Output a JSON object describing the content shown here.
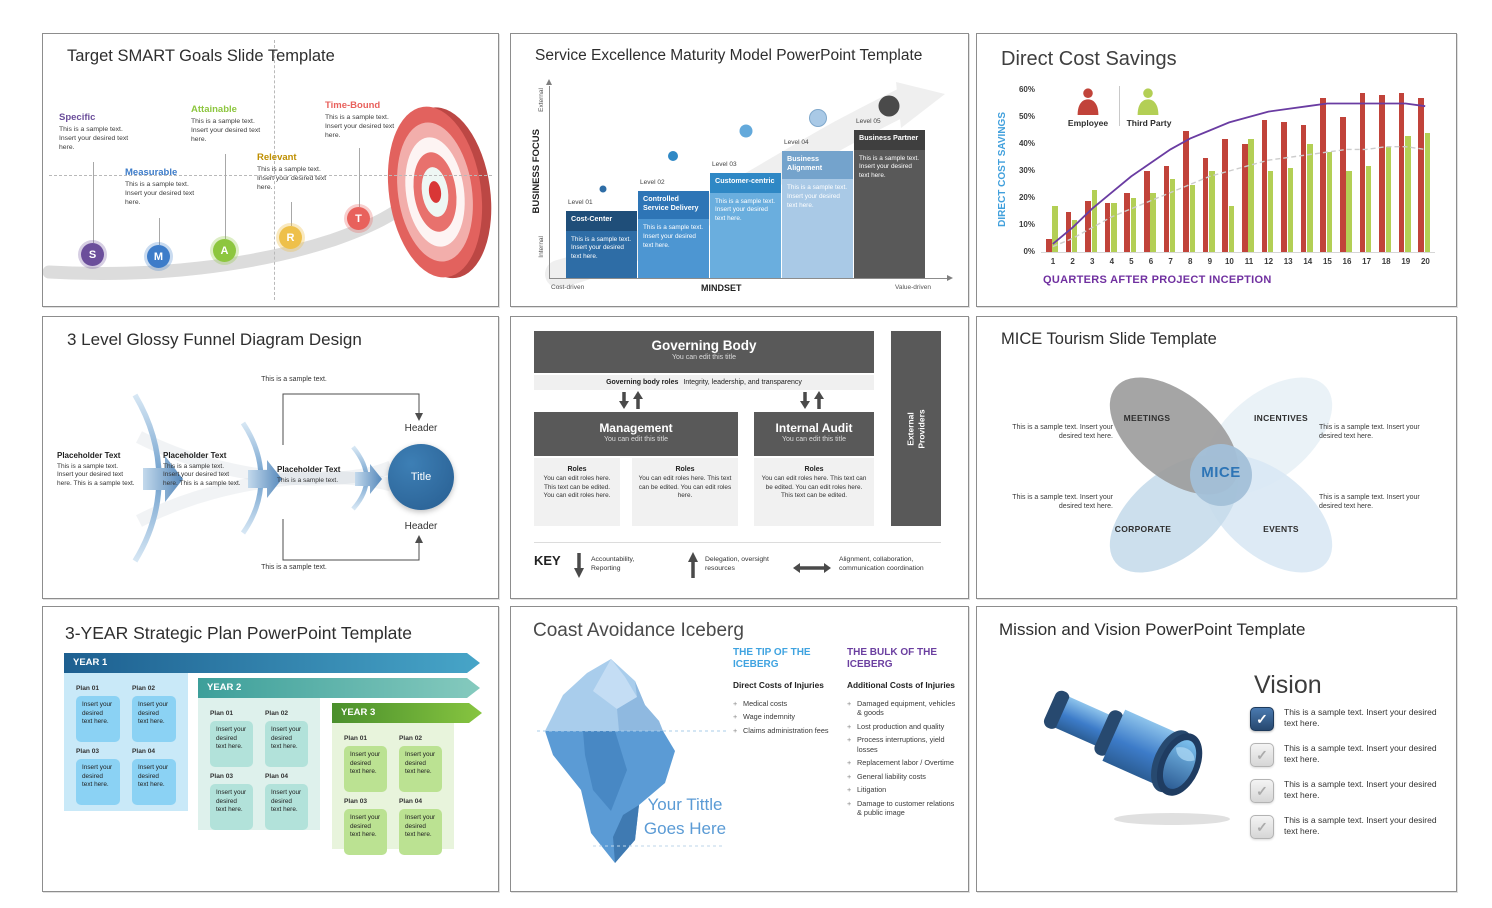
{
  "common": {
    "sample_short": "This is a sample text.",
    "sample_insert": "This is a sample text. Insert your desired text here.",
    "sample_insert_long": "This is a sample text. Insert your desired text here. This is a sample text.",
    "box_insert": "Insert your desired text here."
  },
  "smart": {
    "title": "Target SMART Goals Slide Template",
    "items": [
      {
        "letter": "S",
        "label": "Specific",
        "color": "#6b4e9b"
      },
      {
        "letter": "M",
        "label": "Measurable",
        "color": "#3d7cc9"
      },
      {
        "letter": "A",
        "label": "Attainable",
        "color": "#8dc63f"
      },
      {
        "letter": "R",
        "label": "Relevant",
        "color": "#bf8f00",
        "circle_color": "#eec04a"
      },
      {
        "letter": "T",
        "label": "Time-Bound",
        "color": "#e8615c"
      }
    ]
  },
  "maturity": {
    "title": "Service Excellence Maturity Model PowerPoint Template",
    "y_axis": {
      "label": "BUSINESS FOCUS",
      "top": "External",
      "bottom": "Internal"
    },
    "x_axis": {
      "label": "MINDSET",
      "left": "Cost-driven",
      "right": "Value-driven"
    },
    "levels": [
      {
        "level": "Level 01",
        "name": "Cost-Center",
        "header_color": "#1f4e79",
        "body_color": "#2e6da6"
      },
      {
        "level": "Level 02",
        "name": "Controlled Service Delivery",
        "header_color": "#2e75b6",
        "body_color": "#4d96d2"
      },
      {
        "level": "Level 03",
        "name": "Customer-centric",
        "header_color": "#2f88c5",
        "body_color": "#6aaede"
      },
      {
        "level": "Level 04",
        "name": "Business Alignment",
        "header_color": "#74a3cc",
        "body_color": "#a9c9e6"
      },
      {
        "level": "Level 05",
        "name": "Business Partner",
        "header_color": "#3f3f3f",
        "body_color": "#595959"
      }
    ]
  },
  "chart_data": {
    "type": "bar",
    "title": "Direct Cost Savings",
    "xlabel": "QUARTERS AFTER PROJECT INCEPTION",
    "ylabel": "DIRECT COST SAVINGS",
    "x": [
      1,
      2,
      3,
      4,
      5,
      6,
      7,
      8,
      9,
      10,
      11,
      12,
      13,
      14,
      15,
      16,
      17,
      18,
      19,
      20
    ],
    "ylim": [
      0,
      60
    ],
    "yticks": [
      0,
      10,
      20,
      30,
      40,
      50,
      60
    ],
    "ytick_format": "percent",
    "grid": false,
    "legend_position": "top-left-inside",
    "series": [
      {
        "name": "Employee",
        "color": "#c1433a",
        "values": [
          5,
          15,
          19,
          18,
          22,
          30,
          32,
          45,
          35,
          42,
          40,
          49,
          48,
          47,
          57,
          50,
          59,
          58,
          59,
          57
        ]
      },
      {
        "name": "Third Party",
        "color": "#b3cf55",
        "values": [
          17,
          12,
          23,
          18,
          20,
          22,
          27,
          25,
          30,
          17,
          42,
          30,
          31,
          40,
          37,
          30,
          32,
          39,
          43,
          44
        ]
      }
    ],
    "trend_lines": [
      {
        "name": "Employee trend",
        "color": "#6a3ca2",
        "style": "solid",
        "values": [
          3,
          9,
          16,
          22,
          28,
          33,
          38,
          42,
          45,
          48,
          50,
          52,
          53,
          54,
          55,
          55,
          55,
          55,
          55,
          54
        ]
      },
      {
        "name": "Third Party trend",
        "color": "#cccccc",
        "style": "dashed",
        "values": [
          2,
          5,
          9,
          13,
          16,
          19,
          22,
          25,
          28,
          30,
          32,
          34,
          35,
          36,
          37,
          38,
          38,
          39,
          39,
          38
        ]
      }
    ]
  },
  "funnel": {
    "title": "3 Level Glossy Funnel Diagram Design",
    "stage_label": "Placeholder Text",
    "header_label": "Header",
    "circle_label": "Title"
  },
  "governance": {
    "governing_body": {
      "title": "Governing Body",
      "subtitle": "You can edit this title"
    },
    "strip_bold": "Governing body roles",
    "strip_text": "Integrity, leadership, and transparency",
    "management": {
      "title": "Management",
      "subtitle": "You can edit this title"
    },
    "internal_audit": {
      "title": "Internal Audit",
      "subtitle": "You can edit this title"
    },
    "roles_heading": "Roles",
    "roles_text": "You can edit roles here. This text can be edited. You can edit roles here.",
    "roles_text_long": "You can edit roles here. This text can be edited. You can edit roles here. This text can be edited.",
    "external_providers": "External Providers",
    "key": {
      "label": "KEY",
      "down": "Accountability, Reporting",
      "up": "Delegation, oversight resources",
      "both": "Alignment, collaboration, communication coordination"
    }
  },
  "mice": {
    "title": "MICE Tourism Slide Template",
    "center": "MICE",
    "petals": [
      "MEETINGS",
      "INCENTIVES",
      "CORPORATE",
      "EVENTS"
    ]
  },
  "plan": {
    "title": "3-YEAR Strategic Plan PowerPoint Template",
    "years": [
      "YEAR 1",
      "YEAR 2",
      "YEAR 3"
    ],
    "plans": [
      "Plan 01",
      "Plan 02",
      "Plan 03",
      "Plan 04"
    ]
  },
  "iceberg": {
    "title": "Coast Avoidance Iceberg",
    "your_title": "Your Tittle Goes Here",
    "tip": {
      "heading": "THE TIP OF THE ICEBERG",
      "subheading": "Direct Costs of Injuries",
      "bullets": [
        "Medical costs",
        "Wage indemnity",
        "Claims administration fees"
      ]
    },
    "bulk": {
      "heading": "THE BULK OF THE ICEBERG",
      "subheading": "Additional Costs of Injuries",
      "bullets": [
        "Damaged equipment, vehicles & goods",
        "Lost production and quality",
        "Process interruptions, yield losses",
        "Replacement labor / Overtime",
        "General liability costs",
        "Litigation",
        "Damage to customer relations & public image"
      ]
    }
  },
  "vision": {
    "title": "Mission and Vision PowerPoint Template",
    "heading": "Vision",
    "items": [
      {
        "checked": true
      },
      {
        "checked": false
      },
      {
        "checked": false
      },
      {
        "checked": false
      }
    ]
  }
}
